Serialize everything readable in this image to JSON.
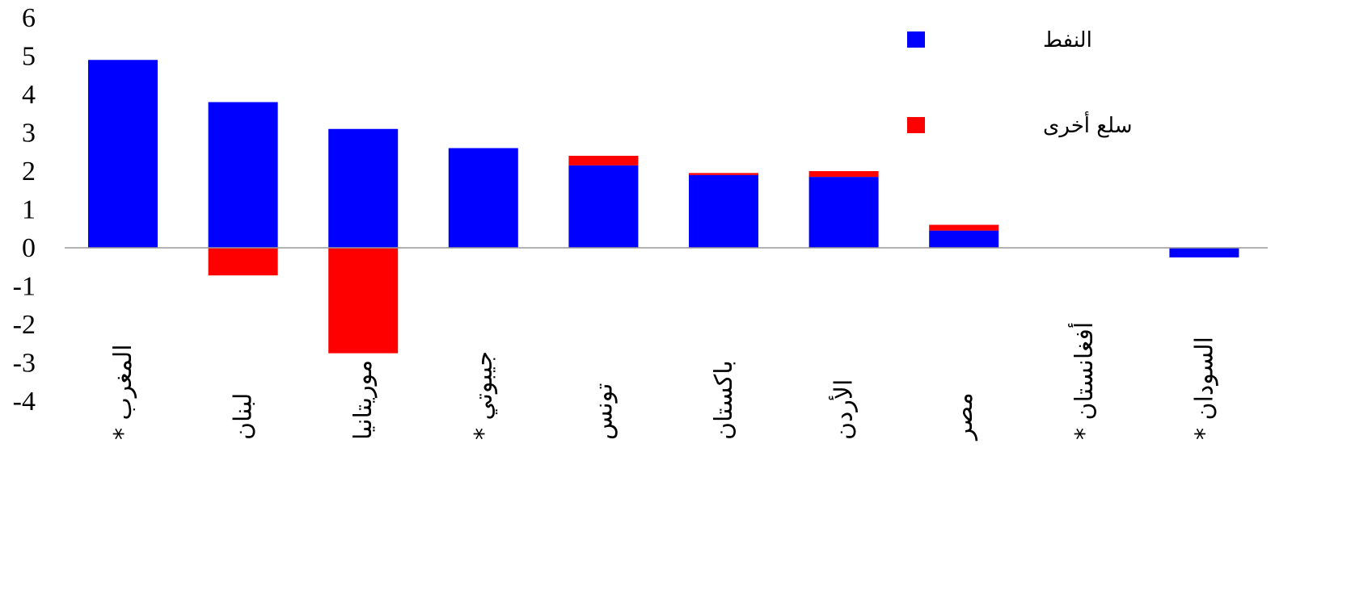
{
  "chart_data": {
    "type": "bar",
    "stacked": true,
    "categories": [
      "المغرب *",
      "لبنان",
      "موريتانيا",
      "جيبوتي *",
      "تونس",
      "باكستان",
      "الأردن",
      "مصر",
      "أفغانستان *",
      "السودان *"
    ],
    "series": [
      {
        "name": "النفط",
        "color": "#0000ff",
        "values": [
          4.9,
          3.8,
          3.1,
          2.6,
          2.15,
          1.9,
          1.85,
          0.45,
          0,
          -0.25
        ]
      },
      {
        "name": "سلع أخرى",
        "color": "#ff0000",
        "values": [
          0,
          -0.72,
          -2.75,
          0,
          0.25,
          0.05,
          0.15,
          0.15,
          0,
          0
        ]
      }
    ],
    "ylim": [
      -4,
      6
    ],
    "yticks": [
      "6",
      "5",
      "4",
      "3",
      "2",
      "1",
      "0",
      "-1",
      "-2",
      "-3",
      "-4"
    ],
    "legend_position": "top-right",
    "grid": false
  }
}
